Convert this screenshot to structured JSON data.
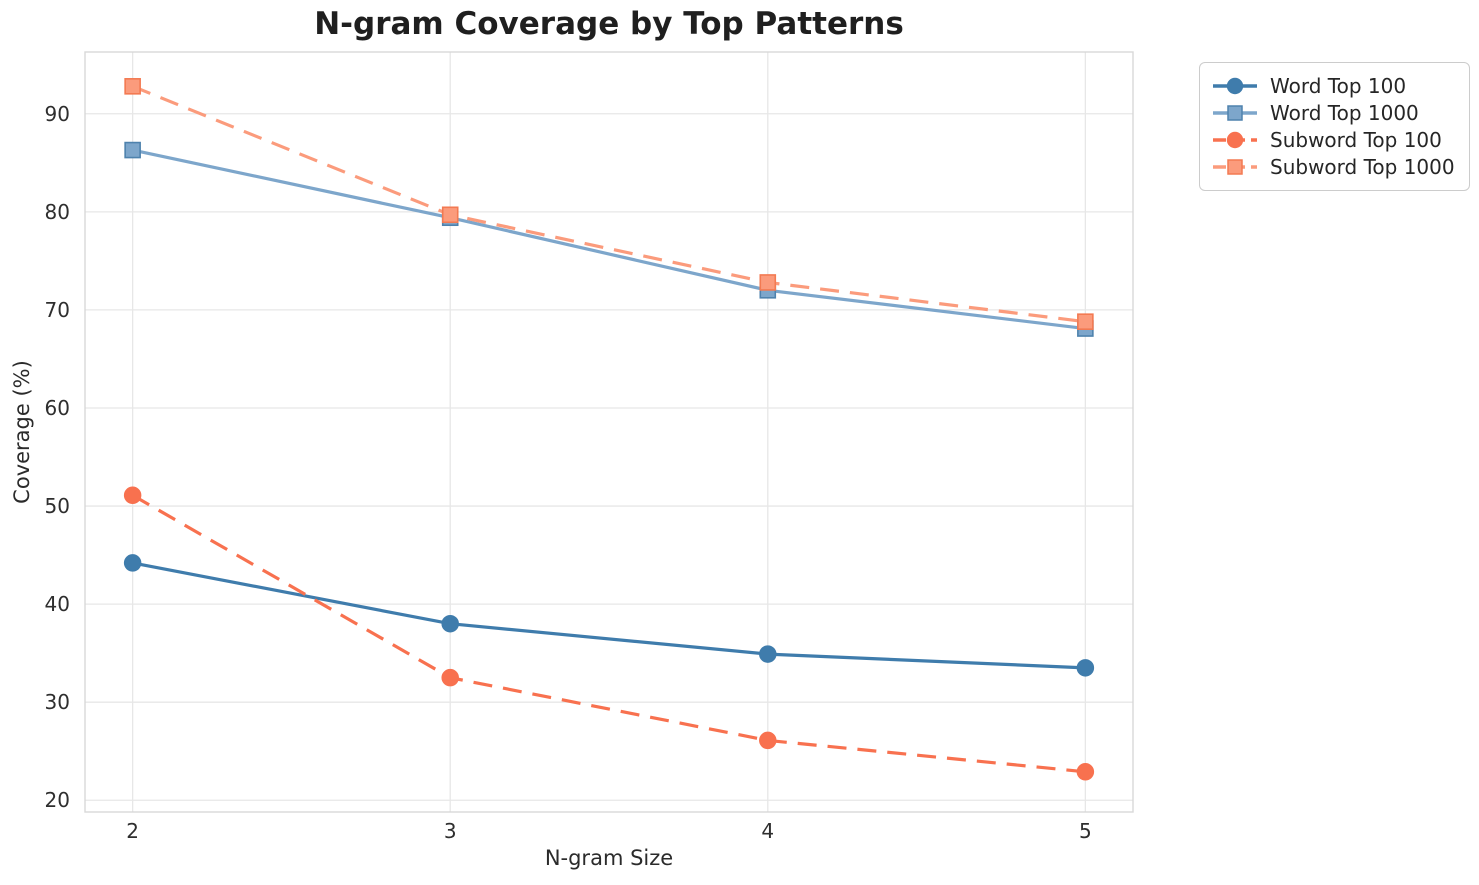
{
  "chart_data": {
    "type": "line",
    "title": "N-gram Coverage by Top Patterns",
    "xlabel": "N-gram Size",
    "ylabel": "Coverage (%)",
    "x": [
      2,
      3,
      4,
      5
    ],
    "xticks": [
      "2",
      "3",
      "4",
      "5"
    ],
    "yticks": [
      "20",
      "30",
      "40",
      "50",
      "60",
      "70",
      "80",
      "90"
    ],
    "ytick_values": [
      20,
      30,
      40,
      50,
      60,
      70,
      80,
      90
    ],
    "xlim": [
      1.85,
      5.15
    ],
    "ylim": [
      18.8,
      96.3
    ],
    "grid": true,
    "legend_position": "outside-top-right",
    "series": [
      {
        "name": "Word Top 100",
        "values": [
          44.2,
          38.0,
          34.9,
          33.5
        ],
        "color": "#3f7cac",
        "edge_color": "#3f7cac",
        "line_style": "solid",
        "marker": "circle"
      },
      {
        "name": "Word Top 1000",
        "values": [
          86.3,
          79.4,
          72.0,
          68.1
        ],
        "color": "#7da6cb",
        "edge_color": "#4e82ad",
        "line_style": "solid",
        "marker": "square"
      },
      {
        "name": "Subword Top 100",
        "values": [
          51.1,
          32.5,
          26.1,
          22.9
        ],
        "color": "#f8714f",
        "edge_color": "#f8714f",
        "line_style": "dashed",
        "marker": "circle"
      },
      {
        "name": "Subword Top 1000",
        "values": [
          92.8,
          79.7,
          72.8,
          68.8
        ],
        "color": "#fb9b7c",
        "edge_color": "#f37a52",
        "line_style": "dashed",
        "marker": "square"
      }
    ],
    "colors": {
      "background": "#ffffff",
      "grid": "#e7e7e7",
      "spine": "#d8d8d8",
      "title_text": "#1f1f1f",
      "tick_text": "#2e2e2e"
    }
  }
}
